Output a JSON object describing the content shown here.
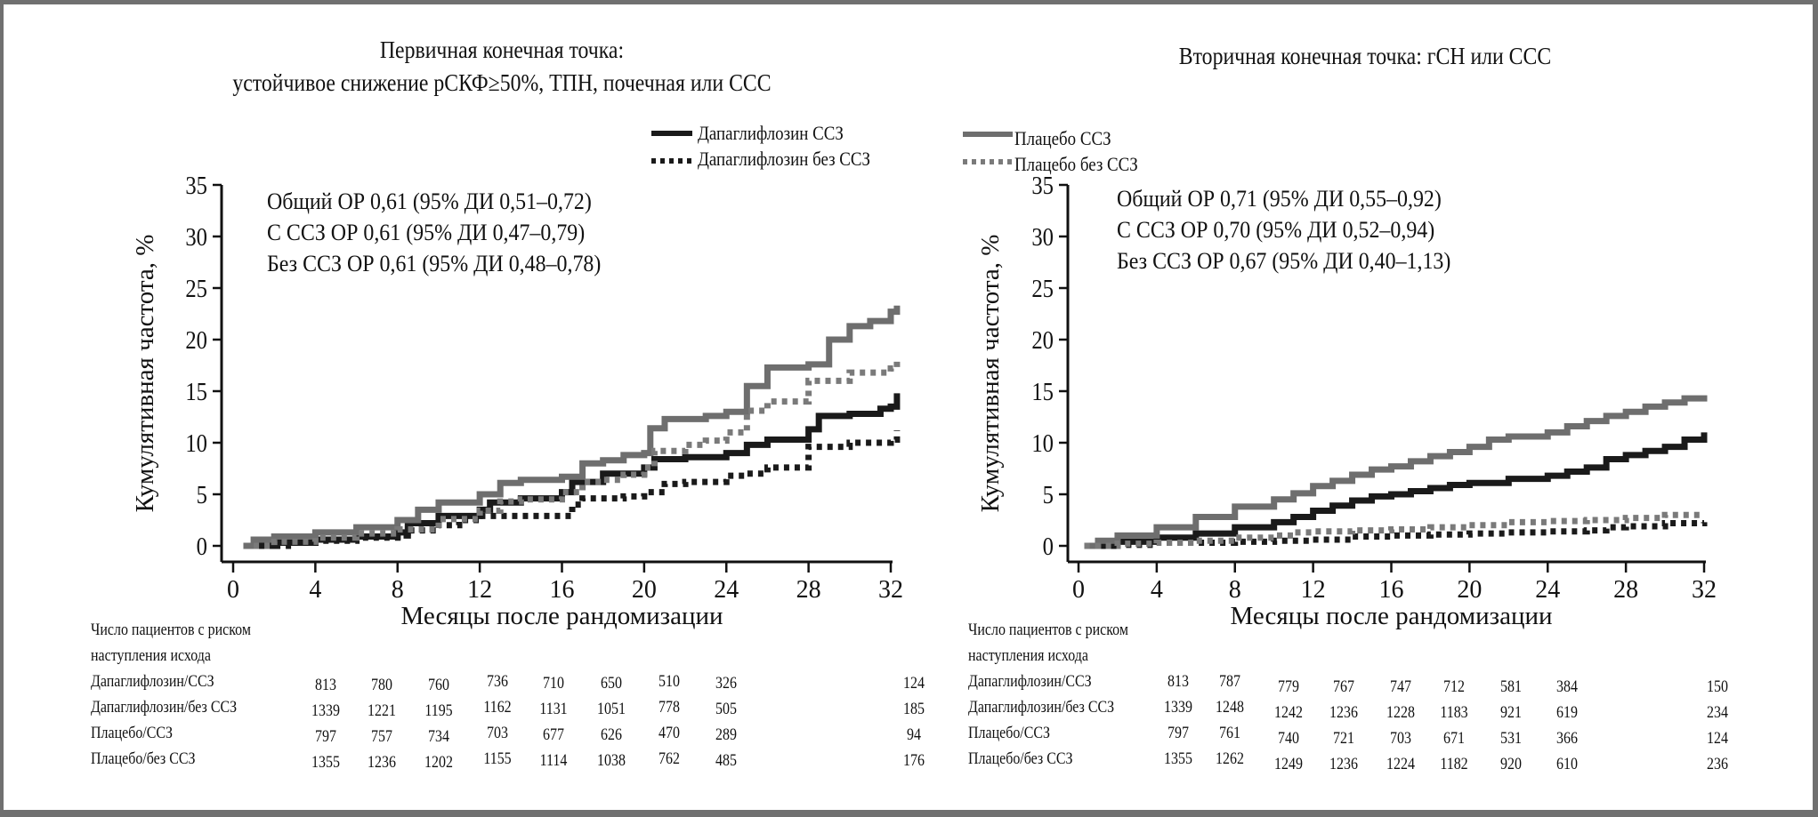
{
  "chart_data": [
    {
      "type": "line",
      "step": true,
      "title": "Первичная конечная точка:\nустойчивое снижение рСКФ≥50%, ТПН, почечная или ССС",
      "title_lines": [
        "Первичная конечная точка:",
        "устойчивое снижение рСКФ≥50%, ТПН, почечная или ССС"
      ],
      "xlabel": "Месяцы после рандомизации",
      "ylabel": "Кумулятивная частота, %",
      "xlim": [
        0,
        32
      ],
      "ylim": [
        0,
        35
      ],
      "xticks": [
        0,
        4,
        8,
        12,
        16,
        20,
        24,
        28,
        32
      ],
      "yticks": [
        0,
        5,
        10,
        15,
        20,
        25,
        30,
        35
      ],
      "grid": false,
      "legend_position": "top-right",
      "annotations": [
        "Общий ОР 0,61 (95% ДИ 0,51–0,72)",
        "С ССЗ ОР 0,61 (95% ДИ 0,47–0,79)",
        "Без ССЗ ОР 0,61 (95% ДИ 0,48–0,78)"
      ],
      "series": [
        {
          "name": "Дапаглифлозин ССЗ",
          "style": "solid",
          "color": "#1a1a1a",
          "x": [
            0.5,
            2,
            4,
            6,
            8,
            8.5,
            10,
            12,
            12.5,
            14,
            16,
            16.5,
            18,
            20,
            20.5,
            22,
            24,
            25,
            26,
            28,
            28.5,
            30,
            31.5,
            32,
            32.3
          ],
          "y": [
            0,
            0.3,
            0.6,
            0.9,
            1.3,
            2.2,
            2.9,
            3.5,
            4.2,
            4.6,
            5.2,
            6.2,
            7.0,
            7.6,
            8.4,
            8.6,
            9.0,
            9.8,
            10.3,
            11.3,
            12.6,
            12.8,
            13.3,
            13.5,
            14.8
          ]
        },
        {
          "name": "Дапаглифлозин без ССЗ",
          "style": "dotted",
          "color": "#1a1a1a",
          "x": [
            1,
            3,
            4,
            6,
            8,
            8.5,
            10,
            11,
            12,
            14,
            16,
            16.5,
            17,
            19,
            20,
            21,
            22,
            24,
            25,
            26,
            28,
            30,
            32,
            32.3
          ],
          "y": [
            0,
            0.3,
            0.5,
            0.8,
            1.0,
            1.5,
            2.0,
            2.5,
            2.9,
            2.9,
            2.9,
            4.0,
            4.6,
            4.8,
            5.2,
            6.0,
            6.2,
            6.8,
            7.0,
            7.6,
            9.6,
            10.0,
            10.3,
            11.2
          ]
        },
        {
          "name": "Плацебо ССЗ",
          "style": "solid",
          "color": "#6e6e6e",
          "x": [
            0.5,
            1,
            2,
            4,
            6,
            8,
            9,
            10,
            12,
            13,
            14,
            16,
            17,
            18,
            19,
            20,
            20.3,
            21,
            23,
            24,
            25,
            26,
            28,
            29,
            30,
            31,
            32,
            32.3
          ],
          "y": [
            0,
            0.6,
            0.9,
            1.3,
            1.8,
            2.5,
            3.5,
            4.2,
            5.0,
            6.1,
            6.4,
            6.7,
            8.0,
            8.3,
            8.8,
            9.0,
            11.4,
            12.3,
            12.6,
            13.0,
            15.5,
            17.3,
            17.6,
            20.0,
            21.3,
            21.8,
            22.7,
            23.3
          ]
        },
        {
          "name": "Плацебо без ССЗ",
          "style": "dotted",
          "color": "#7a7a7a",
          "x": [
            1,
            2,
            4,
            6,
            8,
            10,
            12,
            13,
            14,
            16,
            17,
            18,
            19,
            20,
            20.5,
            22,
            23,
            24,
            25,
            26,
            28,
            30,
            32,
            32.3
          ],
          "y": [
            0,
            0.4,
            0.8,
            1.2,
            1.6,
            2.6,
            3.4,
            4.3,
            4.5,
            5.2,
            6.2,
            6.4,
            6.9,
            7.6,
            9.2,
            9.8,
            10.2,
            11.0,
            13.1,
            14.0,
            16.0,
            16.8,
            17.2,
            18.3
          ]
        }
      ],
      "risk_table": {
        "header": [
          "Число пациентов с риском",
          "наступления исхода"
        ],
        "rows": [
          {
            "label": "Дапаглифлозин/ССЗ",
            "values": [
              813,
              780,
              760,
              736,
              710,
              650,
              510,
              326,
              124
            ]
          },
          {
            "label": "Дапаглифлозин/без ССЗ",
            "values": [
              1339,
              1221,
              1195,
              1162,
              1131,
              1051,
              778,
              505,
              185
            ]
          },
          {
            "label": "Плацебо/ССЗ",
            "values": [
              797,
              757,
              734,
              703,
              677,
              626,
              470,
              289,
              94
            ]
          },
          {
            "label": "Плацебо/без ССЗ",
            "values": [
              1355,
              1236,
              1202,
              1155,
              1114,
              1038,
              762,
              485,
              176
            ]
          }
        ]
      }
    },
    {
      "type": "line",
      "step": true,
      "title": "Вторичная конечная точка: гСН или ССС",
      "title_lines": [
        "Вторичная конечная точка: гСН или ССС"
      ],
      "xlabel": "Месяцы после рандомизации",
      "ylabel": "Кумулятивная частота, %",
      "xlim": [
        0,
        32
      ],
      "ylim": [
        0,
        35
      ],
      "xticks": [
        0,
        4,
        8,
        12,
        16,
        20,
        24,
        28,
        32
      ],
      "yticks": [
        0,
        5,
        10,
        15,
        20,
        25,
        30,
        35
      ],
      "grid": false,
      "legend_position": "top-left",
      "annotations": [
        "Общий ОР 0,71 (95% ДИ 0,55–0,92)",
        "С ССЗ ОР 0,70 (95% ДИ 0,52–0,94)",
        "Без ССЗ ОР 0,67 (95% ДИ 0,40–1,13)"
      ],
      "series": [
        {
          "name": "Дапаглифлозин ССЗ",
          "style": "solid",
          "color": "#1a1a1a",
          "x": [
            0.3,
            2,
            4,
            6,
            8,
            10,
            11,
            12,
            13,
            14,
            15,
            16,
            17,
            18,
            19,
            20,
            22,
            24,
            25,
            26,
            27,
            28,
            29,
            30,
            31,
            32
          ],
          "y": [
            0,
            0.4,
            0.8,
            1.2,
            1.8,
            2.3,
            2.8,
            3.4,
            3.9,
            4.4,
            4.8,
            5.0,
            5.3,
            5.6,
            5.9,
            6.1,
            6.5,
            6.8,
            7.2,
            7.6,
            8.4,
            8.8,
            9.2,
            9.6,
            10.3,
            11.0
          ]
        },
        {
          "name": "Дапаглифлозин без ССЗ",
          "style": "dotted",
          "color": "#1a1a1a",
          "x": [
            0.3,
            2,
            4,
            8,
            10,
            12,
            14,
            16,
            18,
            20,
            22,
            24,
            26,
            27,
            28,
            30,
            32
          ],
          "y": [
            0,
            0.1,
            0.3,
            0.4,
            0.5,
            0.6,
            0.9,
            1.0,
            1.1,
            1.2,
            1.3,
            1.4,
            1.5,
            1.8,
            1.9,
            2.2,
            2.3
          ]
        },
        {
          "name": "Плацебо ССЗ",
          "style": "solid",
          "color": "#6e6e6e",
          "x": [
            0.3,
            1,
            2,
            4,
            6,
            8,
            10,
            11,
            12,
            13,
            14,
            15,
            16,
            17,
            18,
            19,
            20,
            21,
            22,
            24,
            25,
            26,
            27,
            28,
            29,
            30,
            31,
            32
          ],
          "y": [
            0,
            0.5,
            1.0,
            1.8,
            2.8,
            3.8,
            4.5,
            5.1,
            5.8,
            6.3,
            6.9,
            7.4,
            7.7,
            8.2,
            8.7,
            9.1,
            9.6,
            10.3,
            10.6,
            11.0,
            11.6,
            12.1,
            12.6,
            13.0,
            13.5,
            13.9,
            14.3,
            14.6
          ]
        },
        {
          "name": "Плацебо без ССЗ",
          "style": "dotted",
          "color": "#7a7a7a",
          "x": [
            0.3,
            2,
            4,
            6,
            8,
            10,
            11,
            12,
            14,
            16,
            18,
            20,
            22,
            24,
            26,
            28,
            30,
            32
          ],
          "y": [
            0,
            0.2,
            0.3,
            0.5,
            0.8,
            1.0,
            1.3,
            1.4,
            1.5,
            1.6,
            1.8,
            2.0,
            2.3,
            2.4,
            2.5,
            2.7,
            3.0,
            3.0
          ]
        }
      ],
      "risk_table": {
        "header": [
          "Число пациентов с риском",
          "наступления исхода"
        ],
        "rows": [
          {
            "label": "Дапаглифлозин/ССЗ",
            "values": [
              813,
              787,
              779,
              767,
              747,
              712,
              581,
              384,
              150
            ]
          },
          {
            "label": "Дапаглифлозин/без ССЗ",
            "values": [
              1339,
              1248,
              1242,
              1236,
              1228,
              1183,
              921,
              619,
              234
            ]
          },
          {
            "label": "Плацебо/ССЗ",
            "values": [
              797,
              761,
              740,
              721,
              703,
              671,
              531,
              366,
              124
            ]
          },
          {
            "label": "Плацебо/без ССЗ",
            "values": [
              1355,
              1262,
              1249,
              1236,
              1224,
              1182,
              920,
              610,
              236
            ]
          }
        ]
      }
    }
  ],
  "legend": {
    "items": [
      {
        "label": "Дапаглифлозин ССЗ",
        "style": "solid",
        "color": "#1a1a1a"
      },
      {
        "label": "Дапаглифлозин без ССЗ",
        "style": "dotted",
        "color": "#1a1a1a"
      },
      {
        "label": "Плацебо ССЗ",
        "style": "solid",
        "color": "#6e6e6e"
      },
      {
        "label": "Плацебо без ССЗ",
        "style": "dotted",
        "color": "#7a7a7a"
      }
    ]
  }
}
